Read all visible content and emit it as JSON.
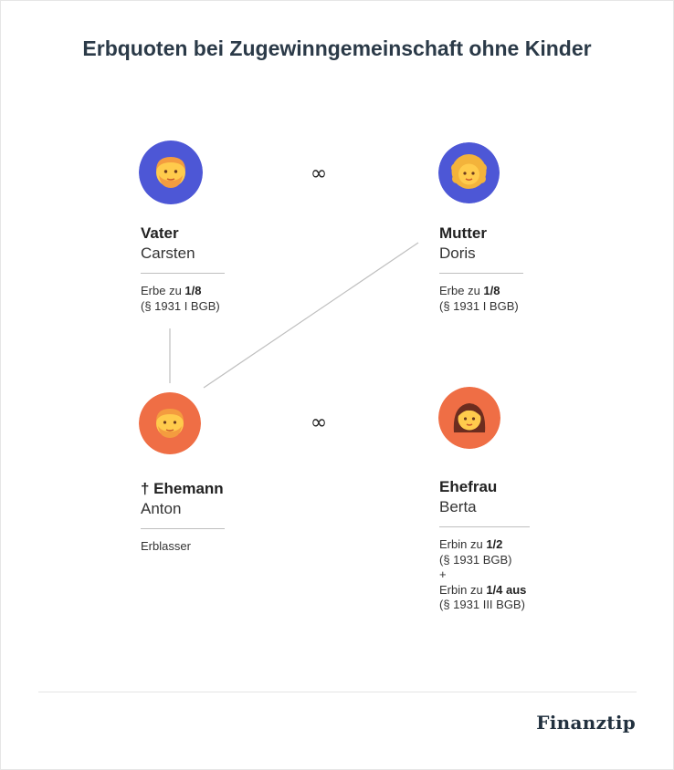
{
  "title": "Erbquoten bei Zugewinngemeinschaft ohne Kinder",
  "marriage_symbol": "∞",
  "colors": {
    "parent_bg": "#4d57d6",
    "couple_bg": "#ef6e45",
    "title": "#2b3a48",
    "line": "#bfbfbf"
  },
  "persons": {
    "father": {
      "icon": "man-with-beard-icon",
      "role": "Vater",
      "name": "Carsten",
      "share_lines": [
        {
          "prefix": "Erbe zu ",
          "bold": "1/8"
        },
        {
          "prefix": "(§ 1931 I BGB)",
          "bold": ""
        }
      ]
    },
    "mother": {
      "icon": "woman-curly-hair-icon",
      "role": "Mutter",
      "name": "Doris",
      "share_lines": [
        {
          "prefix": "Erbe zu ",
          "bold": "1/8"
        },
        {
          "prefix": "(§ 1931 I BGB)",
          "bold": ""
        }
      ]
    },
    "husband": {
      "icon": "man-beard-icon",
      "role": "† Ehemann",
      "name": "Anton",
      "share_lines": [
        {
          "prefix": "Erblasser",
          "bold": ""
        }
      ]
    },
    "wife": {
      "icon": "woman-icon",
      "role": "Ehefrau",
      "name": "Berta",
      "share_lines": [
        {
          "prefix": "Erbin zu ",
          "bold": "1/2"
        },
        {
          "prefix": "(§ 1931 BGB)",
          "bold": ""
        },
        {
          "prefix": "+",
          "bold": ""
        },
        {
          "prefix": "Erbin zu ",
          "bold": "1/4 aus"
        },
        {
          "prefix": "(§ 1931 III BGB)",
          "bold": ""
        }
      ]
    }
  },
  "logo": "Finanztip"
}
